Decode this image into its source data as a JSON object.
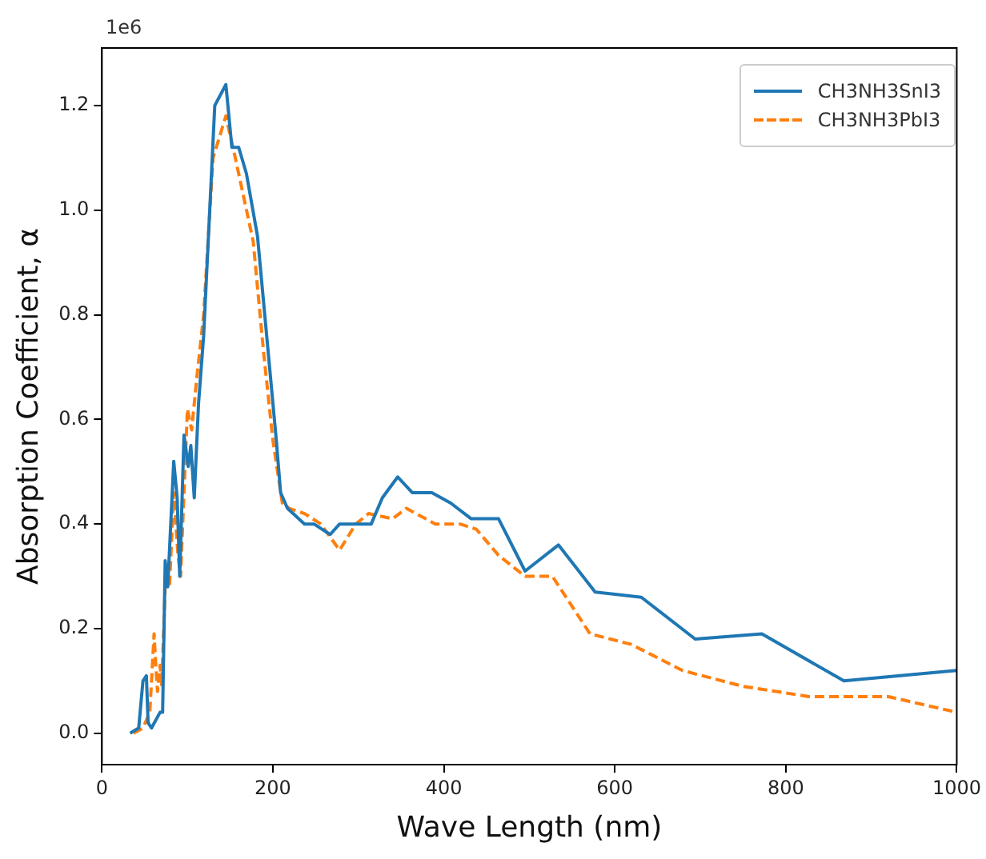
{
  "chart_data": {
    "type": "line",
    "xlabel": "Wave Length (nm)",
    "ylabel": "Absorption Coefficient, α",
    "annotations": [
      "1e6"
    ],
    "xlim": [
      0,
      1000
    ],
    "xticks": [
      0,
      200,
      400,
      600,
      800,
      1000
    ],
    "ylim": [
      -0.06,
      1.31
    ],
    "yticks": [
      {
        "value": 0,
        "label": "0.0"
      },
      {
        "value": 0.2,
        "label": "0.2"
      },
      {
        "value": 0.4,
        "label": "0.4"
      },
      {
        "value": 0.6,
        "label": "0.6"
      },
      {
        "value": 0.8,
        "label": "0.8"
      },
      {
        "value": 1,
        "label": "1.0"
      },
      {
        "value": 1.2,
        "label": "1.2"
      }
    ],
    "grid": false,
    "legend": "top right",
    "marker": "none",
    "series": [
      {
        "name": "CH3NH3SnI3",
        "color": "#1f77b4",
        "line_style": "solid",
        "x": [
          33,
          43,
          48,
          52,
          54,
          58,
          68,
          71,
          74,
          77,
          84,
          88,
          91,
          96,
          101,
          104,
          108,
          113,
          119,
          132,
          145,
          152,
          160,
          169,
          182,
          204,
          209,
          217,
          237,
          248,
          267,
          278,
          297,
          315,
          328,
          346,
          363,
          386,
          408,
          432,
          464,
          495,
          534,
          577,
          631,
          694,
          772,
          868,
          1000
        ],
        "values": [
          0.0,
          0.01,
          0.1,
          0.11,
          0.02,
          0.01,
          0.04,
          0.04,
          0.33,
          0.28,
          0.52,
          0.45,
          0.3,
          0.57,
          0.51,
          0.55,
          0.45,
          0.63,
          0.76,
          1.2,
          1.24,
          1.12,
          1.12,
          1.07,
          0.95,
          0.56,
          0.46,
          0.43,
          0.4,
          0.4,
          0.38,
          0.4,
          0.4,
          0.4,
          0.45,
          0.49,
          0.46,
          0.46,
          0.44,
          0.41,
          0.41,
          0.31,
          0.36,
          0.27,
          0.26,
          0.18,
          0.19,
          0.1,
          0.12
        ]
      },
      {
        "name": "CH3NH3PbI3",
        "color": "#ff7f0e",
        "line_style": "dashed",
        "x": [
          37,
          48,
          56,
          61,
          63,
          65,
          68,
          70,
          74,
          79,
          84,
          89,
          92,
          100,
          105,
          111,
          119,
          130,
          145,
          156,
          177,
          189,
          200,
          211,
          219,
          237,
          256,
          278,
          297,
          312,
          340,
          356,
          390,
          419,
          438,
          464,
          495,
          527,
          571,
          619,
          679,
          749,
          827,
          920,
          1000
        ],
        "values": [
          0.0,
          0.01,
          0.04,
          0.19,
          0.13,
          0.08,
          0.13,
          0.09,
          0.28,
          0.28,
          0.46,
          0.34,
          0.3,
          0.62,
          0.58,
          0.68,
          0.8,
          1.1,
          1.18,
          1.1,
          0.94,
          0.73,
          0.56,
          0.44,
          0.43,
          0.42,
          0.4,
          0.35,
          0.4,
          0.42,
          0.41,
          0.43,
          0.4,
          0.4,
          0.39,
          0.34,
          0.3,
          0.3,
          0.19,
          0.17,
          0.12,
          0.09,
          0.07,
          0.07,
          0.04
        ]
      }
    ]
  }
}
